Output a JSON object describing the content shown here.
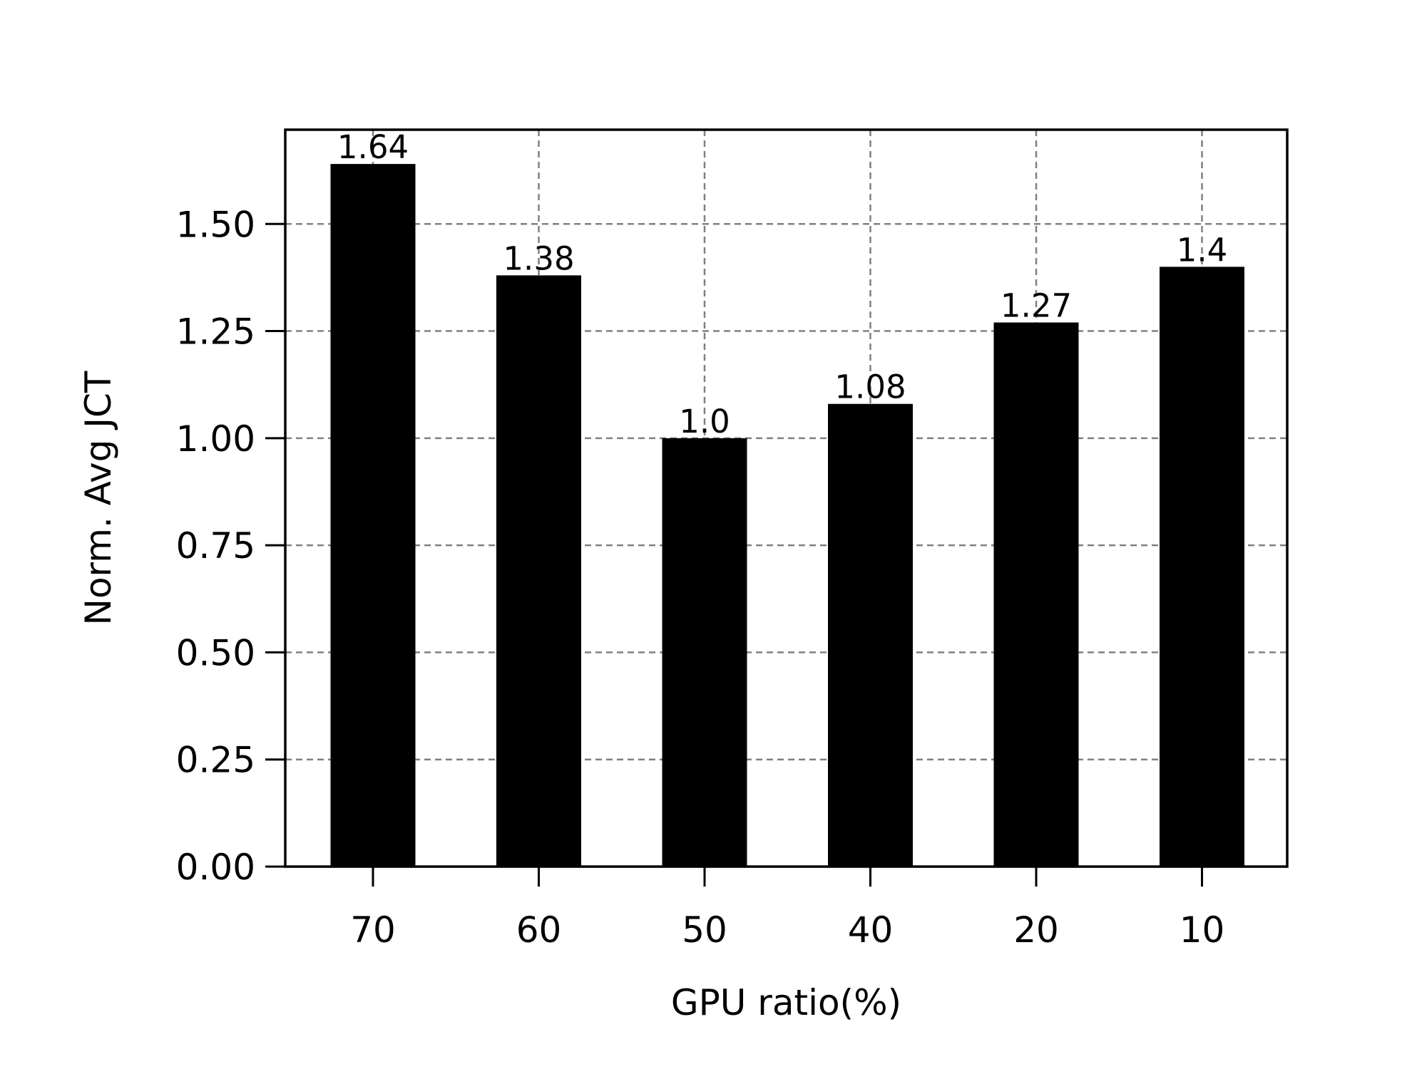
{
  "chart_data": {
    "type": "bar",
    "categories": [
      "70",
      "60",
      "50",
      "40",
      "20",
      "10"
    ],
    "values": [
      1.64,
      1.38,
      1.0,
      1.08,
      1.27,
      1.4
    ],
    "data_labels": [
      "1.64",
      "1.38",
      "1.0",
      "1.08",
      "1.27",
      "1.4"
    ],
    "xlabel": "GPU ratio(%)",
    "ylabel": "Norm. Avg JCT",
    "ylim": [
      0,
      1.72
    ],
    "yticks": [
      0,
      0.25,
      0.5,
      0.75,
      1.0,
      1.25,
      1.5
    ],
    "ytick_labels": [
      "0.00",
      "0.25",
      "0.50",
      "0.75",
      "1.00",
      "1.25",
      "1.50"
    ],
    "grid": true,
    "bar_color": "#000000",
    "grid_color": "#808080"
  }
}
